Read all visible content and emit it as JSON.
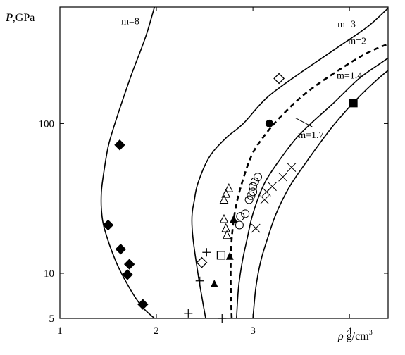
{
  "chart_data": {
    "type": "scatter",
    "title": "",
    "ylabel_symbol": "P",
    "ylabel_unit": ",GPa",
    "xlabel_symbol": "ρ",
    "xlabel_unit": " g/cm",
    "xlabel_sup": "3",
    "xlim": [
      1,
      4.4
    ],
    "ylim": [
      5,
      600
    ],
    "yscale": "log",
    "x_ticks": [
      1,
      2,
      3,
      4
    ],
    "y_ticks": [
      5,
      10,
      100
    ],
    "grid": false,
    "curves": [
      {
        "name": "m=8",
        "style": "solid",
        "points": [
          [
            1.98,
            5
          ],
          [
            1.85,
            6
          ],
          [
            1.72,
            8
          ],
          [
            1.58,
            12
          ],
          [
            1.46,
            20
          ],
          [
            1.43,
            27
          ],
          [
            1.43,
            35
          ],
          [
            1.45,
            45
          ],
          [
            1.5,
            70
          ],
          [
            1.57,
            100
          ],
          [
            1.66,
            150
          ],
          [
            1.75,
            220
          ],
          [
            1.83,
            300
          ],
          [
            1.9,
            400
          ],
          [
            1.98,
            600
          ]
        ]
      },
      {
        "name": "m=3",
        "style": "solid",
        "points": [
          [
            2.51,
            5
          ],
          [
            2.47,
            7
          ],
          [
            2.43,
            10
          ],
          [
            2.39,
            15
          ],
          [
            2.37,
            20
          ],
          [
            2.37,
            25
          ],
          [
            2.39,
            30
          ],
          [
            2.43,
            40
          ],
          [
            2.55,
            60
          ],
          [
            2.72,
            80
          ],
          [
            2.9,
            100
          ],
          [
            3.15,
            150
          ],
          [
            3.5,
            220
          ],
          [
            3.9,
            330
          ],
          [
            4.2,
            450
          ],
          [
            4.4,
            590
          ]
        ]
      },
      {
        "name": "m=2",
        "style": "dashed",
        "points": [
          [
            2.78,
            5
          ],
          [
            2.77,
            8
          ],
          [
            2.77,
            12
          ],
          [
            2.78,
            17
          ],
          [
            2.81,
            25
          ],
          [
            2.87,
            37
          ],
          [
            2.98,
            60
          ],
          [
            3.1,
            80
          ],
          [
            3.28,
            110
          ],
          [
            3.55,
            160
          ],
          [
            3.9,
            230
          ],
          [
            4.2,
            300
          ],
          [
            4.5,
            360
          ]
        ]
      },
      {
        "name": "m=1.7",
        "style": "solid",
        "points": [
          [
            2.83,
            5
          ],
          [
            2.85,
            8
          ],
          [
            2.89,
            12
          ],
          [
            2.94,
            17
          ],
          [
            3.0,
            25
          ],
          [
            3.12,
            40
          ],
          [
            3.3,
            60
          ],
          [
            3.45,
            80
          ],
          [
            3.6,
            100
          ],
          [
            3.85,
            140
          ],
          [
            4.1,
            200
          ],
          [
            4.35,
            260
          ],
          [
            4.55,
            320
          ]
        ]
      },
      {
        "name": "m=1.4",
        "style": "solid",
        "points": [
          [
            3.0,
            5
          ],
          [
            3.03,
            8
          ],
          [
            3.08,
            12
          ],
          [
            3.15,
            17
          ],
          [
            3.24,
            25
          ],
          [
            3.38,
            38
          ],
          [
            3.55,
            55
          ],
          [
            3.7,
            75
          ],
          [
            3.85,
            100
          ],
          [
            4.05,
            140
          ],
          [
            4.3,
            200
          ],
          [
            4.55,
            270
          ]
        ]
      }
    ],
    "annotations": [
      {
        "text": "m=8",
        "x": 1.73,
        "y": 460
      },
      {
        "text": "m=3",
        "x": 3.97,
        "y": 440
      },
      {
        "text": "m=2",
        "x": 4.08,
        "y": 340
      },
      {
        "text": "m=1.4",
        "x": 4.0,
        "y": 200
      },
      {
        "text": "m=1.7",
        "x": 3.6,
        "y": 80,
        "leader_to": [
          3.44,
          109
        ]
      }
    ],
    "series": [
      {
        "marker": "filled-diamond",
        "points": [
          [
            1.62,
            72
          ],
          [
            1.5,
            21
          ],
          [
            1.63,
            14.5
          ],
          [
            1.72,
            11.5
          ],
          [
            1.7,
            9.8
          ],
          [
            1.86,
            6.2
          ]
        ]
      },
      {
        "marker": "open-diamond",
        "points": [
          [
            3.27,
            200
          ],
          [
            2.47,
            11.8
          ]
        ]
      },
      {
        "marker": "filled-circle",
        "points": [
          [
            3.17,
            100
          ]
        ]
      },
      {
        "marker": "filled-square",
        "points": [
          [
            4.04,
            137
          ]
        ]
      },
      {
        "marker": "open-circle",
        "points": [
          [
            3.05,
            44
          ],
          [
            3.02,
            41
          ],
          [
            3.0,
            38
          ],
          [
            3.0,
            35
          ],
          [
            2.98,
            33
          ],
          [
            2.96,
            31
          ],
          [
            2.92,
            25
          ],
          [
            2.87,
            24
          ],
          [
            2.86,
            21
          ]
        ]
      },
      {
        "marker": "open-triangle",
        "points": [
          [
            2.75,
            37
          ],
          [
            2.72,
            34
          ],
          [
            2.7,
            31
          ],
          [
            2.7,
            23
          ],
          [
            2.72,
            20
          ],
          [
            2.73,
            18
          ]
        ]
      },
      {
        "marker": "filled-triangle",
        "points": [
          [
            2.8,
            23
          ],
          [
            2.76,
            13
          ],
          [
            2.6,
            8.5
          ]
        ]
      },
      {
        "marker": "open-square",
        "points": [
          [
            2.67,
            13.2
          ]
        ]
      },
      {
        "marker": "plus",
        "points": [
          [
            2.52,
            13.8
          ],
          [
            2.45,
            8.9
          ],
          [
            2.33,
            5.4
          ],
          [
            2.68,
            5.0
          ]
        ]
      },
      {
        "marker": "cross",
        "points": [
          [
            3.4,
            51
          ],
          [
            3.31,
            44
          ],
          [
            3.2,
            38
          ],
          [
            3.14,
            35
          ],
          [
            3.12,
            31
          ],
          [
            3.03,
            20
          ]
        ]
      }
    ]
  }
}
